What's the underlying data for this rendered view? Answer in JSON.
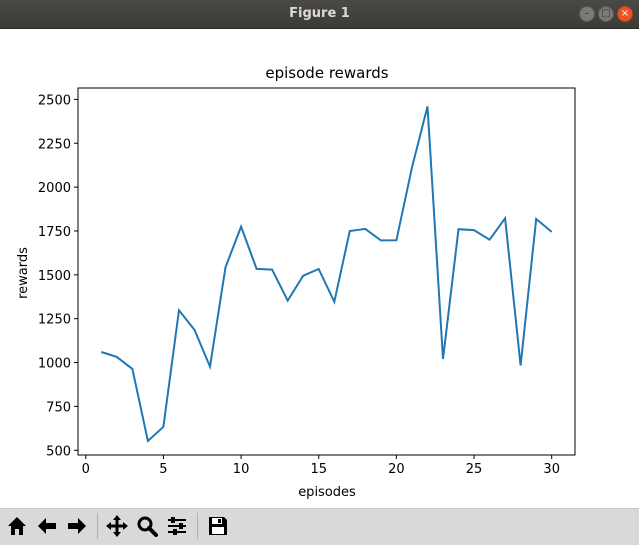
{
  "window": {
    "title": "Figure 1",
    "controls": {
      "minimize": "–",
      "maximize": "□",
      "close": "×"
    }
  },
  "toolbar": {
    "buttons": [
      {
        "name": "home-icon"
      },
      {
        "name": "back-arrow-icon"
      },
      {
        "name": "forward-arrow-icon"
      },
      {
        "name": "pan-icon"
      },
      {
        "name": "zoom-icon"
      },
      {
        "name": "configure-subplots-icon"
      },
      {
        "name": "save-icon"
      }
    ]
  },
  "colors": {
    "line": "#1f77b4",
    "titlebar": "#3c3b37"
  },
  "chart_data": {
    "type": "line",
    "title": "episode rewards",
    "xlabel": "episodes",
    "ylabel": "rewards",
    "xlim": [
      -0.5,
      31.5
    ],
    "ylim": [
      473,
      2565
    ],
    "xticks": [
      0,
      5,
      10,
      15,
      20,
      25,
      30
    ],
    "yticks": [
      500,
      750,
      1000,
      1250,
      1500,
      1750,
      2000,
      2250,
      2500
    ],
    "grid": false,
    "series": [
      {
        "x": [
          1,
          2,
          3,
          4,
          5,
          6,
          7,
          8,
          9,
          10,
          11,
          12,
          13,
          14,
          15,
          16,
          17,
          18,
          19,
          20,
          21,
          22,
          23,
          24,
          25,
          26,
          27,
          28,
          29,
          30
        ],
        "values": [
          1060,
          1032,
          963,
          553,
          634,
          1298,
          1186,
          977,
          1543,
          1775,
          1534,
          1530,
          1353,
          1495,
          1533,
          1346,
          1750,
          1762,
          1696,
          1697,
          2110,
          2460,
          1020,
          1760,
          1755,
          1700,
          1822,
          983,
          1818,
          1745
        ]
      }
    ]
  }
}
